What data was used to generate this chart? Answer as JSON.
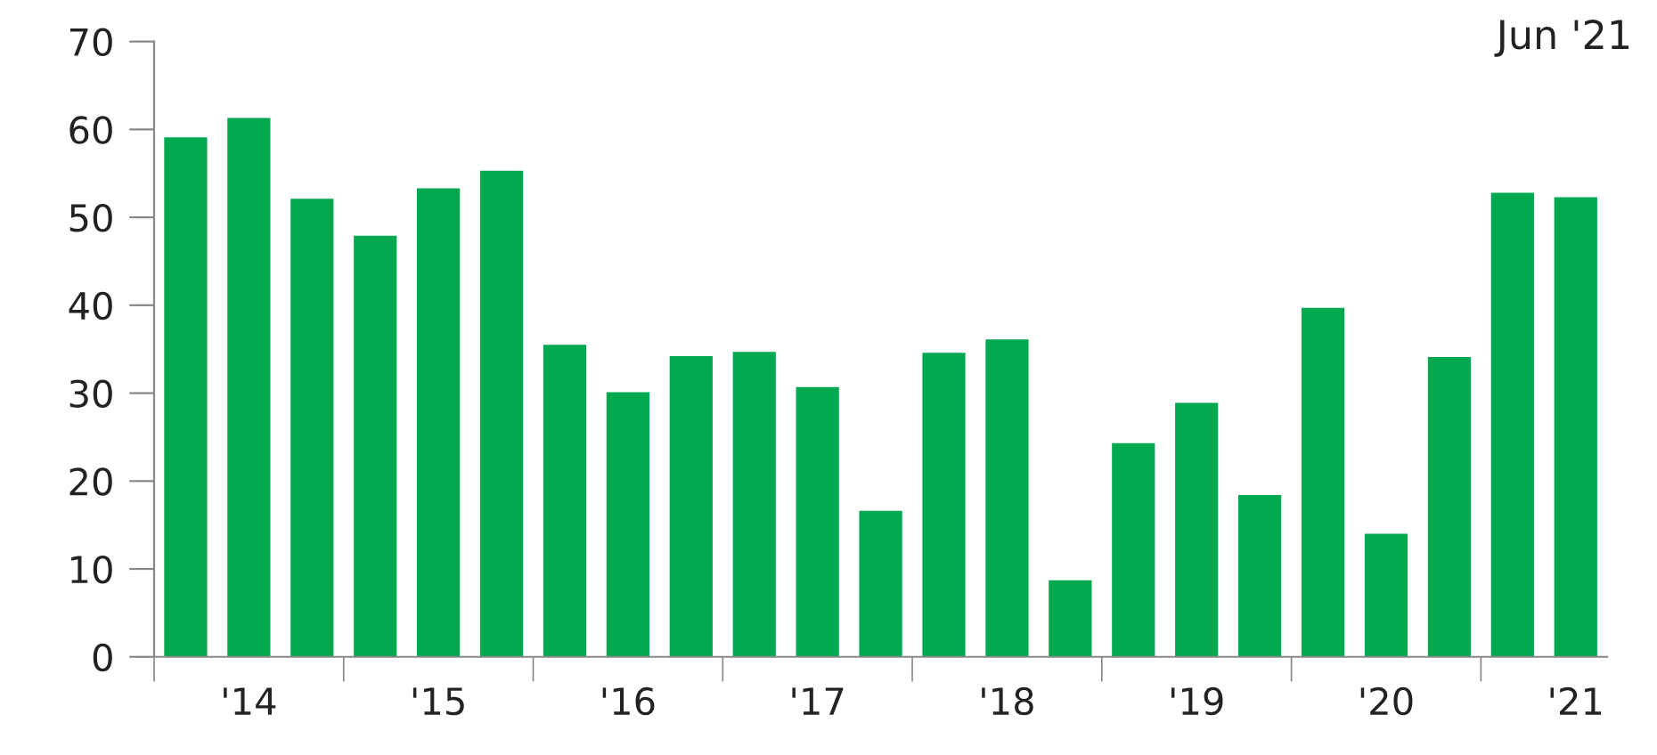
{
  "chart_data": {
    "type": "bar",
    "annotations": [
      "Jun '21"
    ],
    "categories": [
      null,
      "'14",
      null,
      null,
      "'15",
      null,
      null,
      "'16",
      null,
      null,
      "'17",
      null,
      null,
      "'18",
      null,
      null,
      "'19",
      null,
      null,
      "'20",
      null,
      null,
      "'21"
    ],
    "values": [
      59.1,
      61.3,
      52.1,
      47.9,
      53.3,
      55.3,
      35.5,
      30.1,
      34.2,
      34.7,
      30.7,
      16.6,
      34.6,
      36.1,
      8.7,
      24.3,
      28.9,
      18.4,
      39.7,
      14.0,
      34.1,
      52.8,
      52.3
    ],
    "color": "#00a84f",
    "ylim": [
      0,
      70
    ],
    "yticks": [
      0,
      10,
      20,
      30,
      40,
      50,
      60,
      70
    ],
    "grid": false,
    "legend": false
  }
}
